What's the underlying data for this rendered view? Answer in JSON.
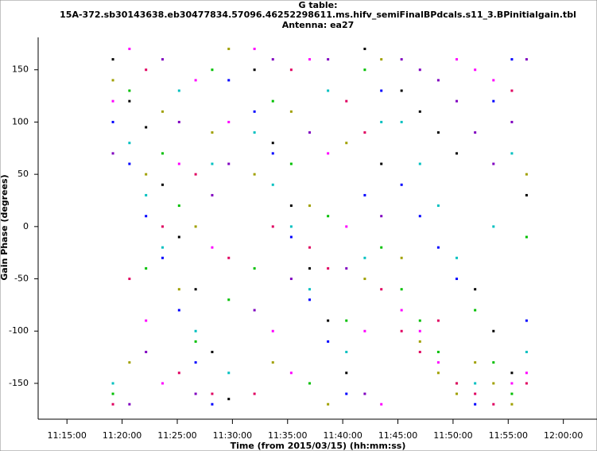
{
  "chart_data": {
    "type": "scatter",
    "title": "G table:",
    "subtitle": "15A-372.sb30143638.eb30477834.57096.46252298611.ms.hifv_semiFinalBPdcals.s11_3.BPinitialgain.tbl",
    "annotation": "Antenna: ea27",
    "x_label": "Time (from 2015/03/15) (hh:mm:ss)",
    "y_label": "Gain Phase (degrees)",
    "xlim": [
      "11:12:32",
      "12:03:03"
    ],
    "xticks": [
      "11:15:00",
      "11:20:00",
      "11:25:00",
      "11:30:00",
      "11:35:00",
      "11:40:00",
      "11:45:00",
      "11:50:00",
      "11:55:00",
      "12:00:00"
    ],
    "ylim": [
      -182,
      181
    ],
    "yticks": [
      -150,
      -100,
      -50,
      0,
      50,
      100,
      150
    ],
    "x": [
      "11:19:10",
      "11:20:40",
      "11:22:10",
      "11:23:40",
      "11:25:10",
      "11:26:40",
      "11:28:10",
      "11:29:40",
      "11:32:00",
      "11:33:40",
      "11:35:20",
      "11:37:00",
      "11:38:40",
      "11:40:20",
      "11:42:00",
      "11:43:30",
      "11:45:20",
      "11:47:00",
      "11:48:40",
      "11:50:20",
      "11:52:00",
      "11:53:40",
      "11:55:20",
      "11:56:40"
    ],
    "series": [
      {
        "color": "#000000",
        "values": [
          160,
          120,
          95,
          40,
          -10,
          -60,
          -120,
          -165,
          150,
          80,
          20,
          -40,
          -90,
          -140,
          170,
          60,
          130,
          110,
          90,
          70,
          -60,
          -100,
          -140,
          30
        ]
      },
      {
        "color": "#0000ff",
        "values": [
          100,
          60,
          10,
          -30,
          -80,
          -130,
          -170,
          140,
          110,
          70,
          -10,
          -70,
          -110,
          -160,
          30,
          130,
          40,
          10,
          -20,
          -50,
          -170,
          120,
          160,
          -90
        ]
      },
      {
        "color": "#00c0c0",
        "values": [
          -150,
          80,
          30,
          -20,
          130,
          -100,
          60,
          -140,
          90,
          40,
          0,
          -60,
          130,
          -120,
          -30,
          100,
          100,
          60,
          20,
          -30,
          -150,
          0,
          70,
          -120
        ]
      },
      {
        "color": "#00c000",
        "values": [
          -160,
          130,
          -40,
          70,
          20,
          -110,
          150,
          -70,
          -40,
          120,
          60,
          -150,
          10,
          -90,
          150,
          -20,
          -60,
          -90,
          -120,
          -150,
          -80,
          -130,
          -160,
          -10
        ]
      },
      {
        "color": "#a0a000",
        "values": [
          140,
          -130,
          50,
          110,
          -60,
          0,
          90,
          170,
          50,
          -130,
          110,
          20,
          -170,
          80,
          -50,
          160,
          -30,
          -110,
          -140,
          -160,
          -130,
          -150,
          -170,
          50
        ]
      },
      {
        "color": "#ff00ff",
        "values": [
          120,
          170,
          -90,
          -150,
          60,
          140,
          -20,
          100,
          170,
          -100,
          -140,
          160,
          70,
          0,
          -100,
          -170,
          -80,
          -100,
          -130,
          160,
          150,
          140,
          -150,
          -140
        ]
      },
      {
        "color": "#e00060",
        "values": [
          -170,
          -50,
          150,
          0,
          -140,
          50,
          -160,
          -30,
          -160,
          0,
          150,
          -20,
          -40,
          120,
          90,
          -60,
          -100,
          -120,
          -90,
          -150,
          -160,
          -170,
          130,
          -150
        ]
      },
      {
        "color": "#8000c0",
        "values": [
          70,
          -170,
          -120,
          160,
          100,
          -160,
          30,
          60,
          -80,
          160,
          -50,
          90,
          160,
          -40,
          -160,
          10,
          160,
          150,
          140,
          120,
          90,
          60,
          100,
          160
        ]
      }
    ]
  }
}
